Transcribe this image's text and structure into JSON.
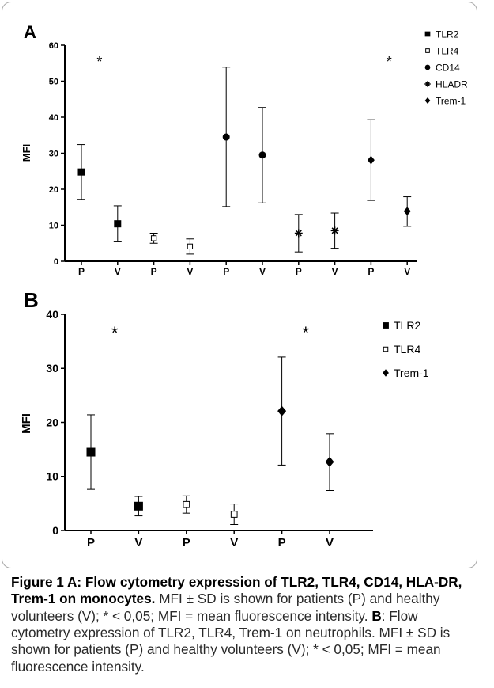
{
  "chart_data": [
    {
      "panel": "A",
      "type": "scatter",
      "ylabel": "MFI",
      "ylim": [
        0,
        60
      ],
      "yticks": [
        0,
        10,
        20,
        30,
        40,
        50,
        60
      ],
      "categories": [
        "P",
        "V",
        "P",
        "V",
        "P",
        "V",
        "P",
        "V",
        "P",
        "V"
      ],
      "series": [
        {
          "name": "TLR2",
          "marker": "square-filled",
          "points": [
            {
              "x": 0,
              "mean": 24.8,
              "low": 17.2,
              "high": 32.4
            },
            {
              "x": 1,
              "mean": 10.4,
              "low": 5.4,
              "high": 15.4
            }
          ]
        },
        {
          "name": "TLR4",
          "marker": "square-open",
          "points": [
            {
              "x": 2,
              "mean": 6.4,
              "low": 5.0,
              "high": 7.8
            },
            {
              "x": 3,
              "mean": 4.1,
              "low": 2.0,
              "high": 6.2
            }
          ]
        },
        {
          "name": "CD14",
          "marker": "circle-filled",
          "points": [
            {
              "x": 4,
              "mean": 34.5,
              "low": 15.2,
              "high": 53.9
            },
            {
              "x": 5,
              "mean": 29.5,
              "low": 16.2,
              "high": 42.7
            }
          ]
        },
        {
          "name": "HLADR",
          "marker": "asterisk",
          "points": [
            {
              "x": 6,
              "mean": 7.8,
              "low": 2.6,
              "high": 13.0
            },
            {
              "x": 7,
              "mean": 8.5,
              "low": 3.6,
              "high": 13.4
            }
          ]
        },
        {
          "name": "Trem-1",
          "marker": "diamond-filled",
          "points": [
            {
              "x": 8,
              "mean": 28.1,
              "low": 16.9,
              "high": 39.3
            },
            {
              "x": 9,
              "mean": 13.9,
              "low": 9.7,
              "high": 17.9
            }
          ]
        }
      ],
      "annotations": [
        {
          "text": "*",
          "over": 0
        },
        {
          "text": "*",
          "over": 8
        }
      ],
      "legend_position": "top-right"
    },
    {
      "panel": "B",
      "type": "scatter",
      "ylabel": "MFI",
      "ylim": [
        0,
        40
      ],
      "yticks": [
        0,
        10,
        20,
        30,
        40
      ],
      "categories": [
        "P",
        "V",
        "P",
        "V",
        "P",
        "V"
      ],
      "series": [
        {
          "name": "TLR2",
          "marker": "square-filled",
          "points": [
            {
              "x": 0,
              "mean": 14.5,
              "low": 7.6,
              "high": 21.4
            },
            {
              "x": 1,
              "mean": 4.5,
              "low": 2.7,
              "high": 6.3
            }
          ]
        },
        {
          "name": "TLR4",
          "marker": "square-open",
          "points": [
            {
              "x": 2,
              "mean": 4.8,
              "low": 3.2,
              "high": 6.4
            },
            {
              "x": 3,
              "mean": 3.0,
              "low": 1.1,
              "high": 4.9
            }
          ]
        },
        {
          "name": "Trem-1",
          "marker": "diamond-filled",
          "points": [
            {
              "x": 4,
              "mean": 22.1,
              "low": 12.1,
              "high": 32.1
            },
            {
              "x": 5,
              "mean": 12.7,
              "low": 7.4,
              "high": 17.9
            }
          ]
        }
      ],
      "annotations": [
        {
          "text": "*",
          "over": 0
        },
        {
          "text": "*",
          "over": 4
        }
      ],
      "legend_position": "top-right"
    }
  ],
  "caption": {
    "title": "Figure 1 A: Flow cytometry expression of TLR2, TLR4, CD14, HLA-DR, Trem-1 on monocytes.",
    "text_a": " MFI ± SD is shown for patients (P) and healthy volunteers (V); * < 0,05; MFI = mean fluorescence intensity. ",
    "label_b": "B",
    "text_b": ": Flow cytometry expression of TLR2, TLR4, Trem-1 on neutrophils. MFI ± SD is shown for patients (P) and healthy volunteers (V); * < 0,05; MFI = mean fluorescence intensity."
  }
}
